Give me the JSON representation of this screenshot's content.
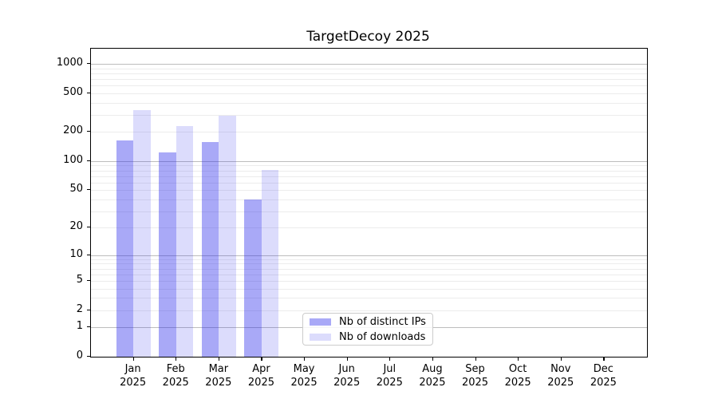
{
  "figure": {
    "title": "TargetDecoy 2025"
  },
  "chart_data": {
    "type": "bar",
    "title": "TargetDecoy 2025",
    "categories": [
      "Jan",
      "Feb",
      "Mar",
      "Apr",
      "May",
      "Jun",
      "Jul",
      "Aug",
      "Sep",
      "Oct",
      "Nov",
      "Dec"
    ],
    "category_year_line": "2025",
    "series": [
      {
        "name": "Nb of distinct IPs",
        "color": "rgba(40,40,235,0.40)",
        "approx_hex": "#a9a9f7",
        "values": [
          162,
          124,
          156,
          40,
          0,
          0,
          0,
          0,
          0,
          0,
          0,
          0
        ]
      },
      {
        "name": "Nb of downloads",
        "color": "rgba(40,40,235,0.16)",
        "approx_hex": "#dcdcfa",
        "values": [
          336,
          230,
          294,
          81,
          0,
          0,
          0,
          0,
          0,
          0,
          0,
          0
        ]
      }
    ],
    "xlabel": "",
    "ylabel": "",
    "y_axis": {
      "scale": "log1p",
      "tick_values": [
        0,
        1,
        2,
        5,
        10,
        20,
        50,
        100,
        200,
        500,
        1000
      ],
      "tick_labels": [
        "0",
        "1",
        "2",
        "5",
        "10",
        "20",
        "50",
        "100",
        "200",
        "500",
        "1000"
      ],
      "max_value": 1430,
      "major_grid_values": [
        1,
        10,
        100,
        1000
      ],
      "minor_grid_values": [
        2,
        3,
        4,
        5,
        6,
        7,
        8,
        9,
        20,
        30,
        40,
        50,
        60,
        70,
        80,
        90,
        200,
        300,
        400,
        500,
        600,
        700,
        800,
        900
      ]
    },
    "legend": {
      "entries": [
        "Nb of distinct IPs",
        "Nb of downloads"
      ],
      "position": "lower center-left inside plot"
    },
    "grid": "on",
    "colors": {
      "major_grid": "#bdbdbd",
      "minor_grid": "#ececec",
      "spine": "#000000",
      "text": "#000000",
      "background": "#ffffff"
    }
  }
}
